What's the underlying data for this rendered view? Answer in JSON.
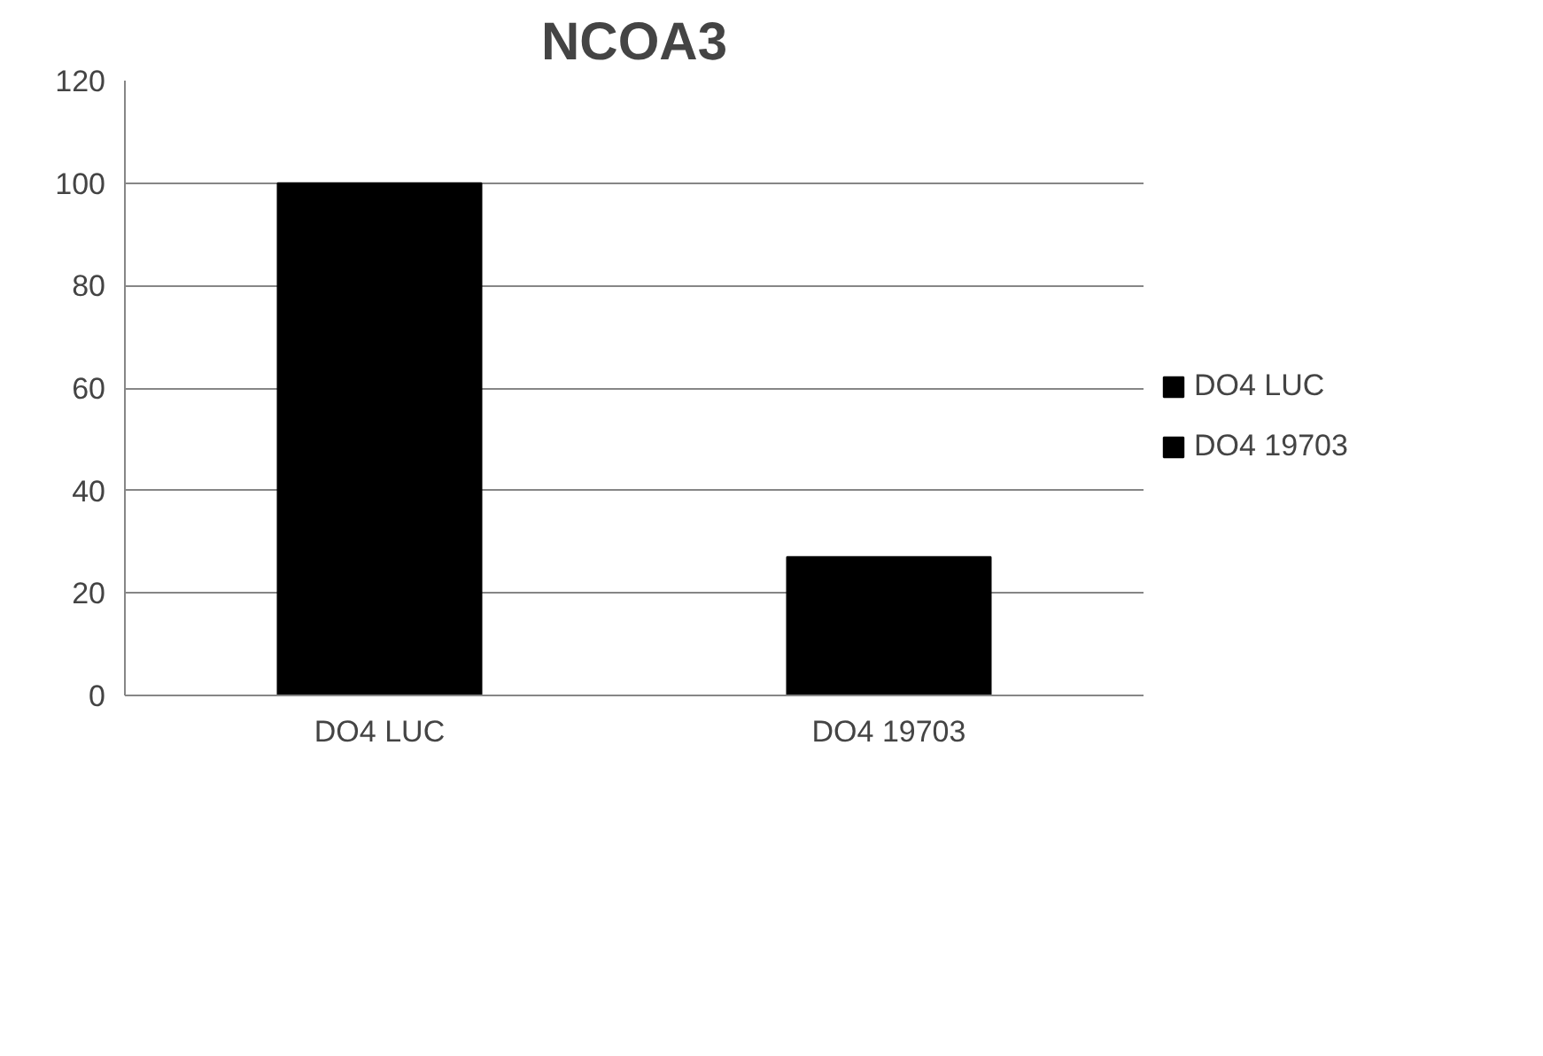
{
  "chart_data": {
    "type": "bar",
    "title": "NCOA3",
    "categories": [
      "DO4 LUC",
      "DO4 19703"
    ],
    "series": [
      {
        "name": "DO4 LUC",
        "color": "#000000",
        "values": [
          100,
          null
        ]
      },
      {
        "name": "DO4 19703",
        "color": "#000000",
        "values": [
          null,
          27
        ]
      }
    ],
    "ylim": [
      0,
      120
    ],
    "yticks": [
      0,
      20,
      40,
      60,
      80,
      100,
      120
    ],
    "grid": "y",
    "legend": "right"
  }
}
